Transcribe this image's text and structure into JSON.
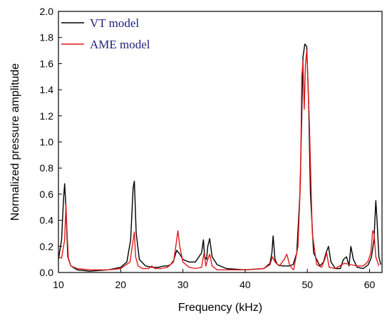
{
  "chart_data": {
    "type": "line",
    "xlabel": "Frequency (kHz)",
    "ylabel": "Normalized pressure amplitude",
    "xlim": [
      10,
      62
    ],
    "ylim": [
      0.0,
      2.0
    ],
    "x_ticks": [
      10,
      20,
      30,
      40,
      50,
      60
    ],
    "y_ticks": [
      0.0,
      0.2,
      0.4,
      0.6,
      0.8,
      1.0,
      1.2,
      1.4,
      1.6,
      1.8,
      2.0
    ],
    "x_tick_labels": [
      "10",
      "20",
      "30",
      "40",
      "50",
      "60"
    ],
    "y_tick_labels": [
      "0.0",
      "0.2",
      "0.4",
      "0.6",
      "0.8",
      "1.0",
      "1.2",
      "1.4",
      "1.6",
      "1.8",
      "2.0"
    ],
    "grid": false,
    "legend_position": "top-left",
    "series": [
      {
        "name": "VT model",
        "color": "#000000",
        "x": [
          10.0,
          10.5,
          10.8,
          11.0,
          11.2,
          11.5,
          12.0,
          13.0,
          15.0,
          18.0,
          20.0,
          21.0,
          21.6,
          22.0,
          22.2,
          22.5,
          23.0,
          24.0,
          25.0,
          26.0,
          27.0,
          27.5,
          28.0,
          28.5,
          29.0,
          29.5,
          30.0,
          31.0,
          32.0,
          33.0,
          33.3,
          33.5,
          33.8,
          34.0,
          34.3,
          34.7,
          35.5,
          37.0,
          40.0,
          43.0,
          44.0,
          44.3,
          44.5,
          44.8,
          45.2,
          46.0,
          47.0,
          47.7,
          48.3,
          48.8,
          49.1,
          49.3,
          49.6,
          49.9,
          50.2,
          50.5,
          51.0,
          52.0,
          52.6,
          53.0,
          53.4,
          53.8,
          54.5,
          55.3,
          55.8,
          56.3,
          56.7,
          57.0,
          57.4,
          58.0,
          59.0,
          59.8,
          60.3,
          60.7,
          61.0,
          61.2,
          61.5,
          61.8
        ],
        "values": [
          0.1,
          0.25,
          0.55,
          0.68,
          0.5,
          0.12,
          0.05,
          0.02,
          0.01,
          0.02,
          0.04,
          0.08,
          0.25,
          0.65,
          0.7,
          0.3,
          0.1,
          0.05,
          0.04,
          0.04,
          0.05,
          0.05,
          0.06,
          0.09,
          0.17,
          0.14,
          0.1,
          0.08,
          0.08,
          0.15,
          0.25,
          0.12,
          0.1,
          0.2,
          0.26,
          0.12,
          0.06,
          0.03,
          0.02,
          0.03,
          0.07,
          0.15,
          0.28,
          0.1,
          0.06,
          0.05,
          0.05,
          0.06,
          0.15,
          0.6,
          1.2,
          1.65,
          1.75,
          1.73,
          1.3,
          0.6,
          0.15,
          0.05,
          0.08,
          0.15,
          0.2,
          0.08,
          0.03,
          0.03,
          0.1,
          0.12,
          0.05,
          0.2,
          0.1,
          0.04,
          0.03,
          0.06,
          0.12,
          0.25,
          0.55,
          0.4,
          0.12,
          0.06
        ]
      },
      {
        "name": "AME model",
        "color": "#e31a1c",
        "x": [
          10.0,
          10.5,
          11.0,
          11.2,
          11.4,
          11.6,
          12.0,
          13.0,
          15.0,
          18.0,
          20.0,
          21.5,
          22.0,
          22.2,
          22.4,
          22.8,
          23.5,
          24.5,
          25.0,
          25.5,
          26.5,
          27.5,
          28.5,
          29.0,
          29.2,
          29.5,
          30.0,
          31.0,
          32.0,
          33.0,
          33.4,
          33.7,
          34.0,
          34.3,
          34.7,
          35.5,
          37.0,
          40.0,
          43.0,
          44.0,
          44.4,
          44.8,
          45.5,
          46.3,
          46.7,
          47.2,
          47.8,
          48.5,
          48.9,
          49.1,
          49.3,
          49.5,
          49.7,
          49.9,
          50.3,
          50.8,
          51.5,
          52.3,
          52.8,
          53.1,
          53.5,
          54.5,
          55.5,
          56.0,
          57.0,
          58.0,
          59.0,
          59.7,
          60.2,
          60.5,
          60.7,
          61.0,
          61.5
        ],
        "values": [
          0.12,
          0.11,
          0.25,
          0.52,
          0.3,
          0.1,
          0.05,
          0.03,
          0.02,
          0.02,
          0.03,
          0.08,
          0.25,
          0.31,
          0.12,
          0.05,
          0.03,
          0.03,
          0.05,
          0.03,
          0.03,
          0.04,
          0.08,
          0.25,
          0.32,
          0.2,
          0.08,
          0.04,
          0.03,
          0.04,
          0.15,
          0.05,
          0.1,
          0.14,
          0.05,
          0.02,
          0.02,
          0.02,
          0.03,
          0.06,
          0.12,
          0.08,
          0.05,
          0.1,
          0.14,
          0.05,
          0.02,
          0.2,
          0.7,
          1.5,
          1.62,
          1.25,
          1.6,
          1.7,
          1.2,
          0.3,
          0.06,
          0.04,
          0.1,
          0.15,
          0.04,
          0.03,
          0.06,
          0.07,
          0.06,
          0.05,
          0.05,
          0.08,
          0.15,
          0.32,
          0.3,
          0.12,
          0.05
        ]
      }
    ]
  }
}
